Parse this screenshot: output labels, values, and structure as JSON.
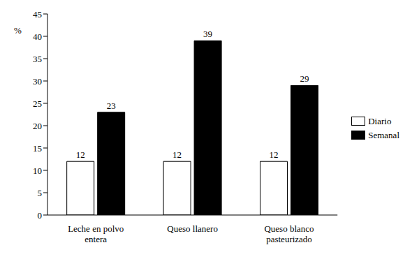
{
  "chart_data": {
    "type": "bar",
    "y_label": "%",
    "categories": [
      "Leche en polvo entera",
      "Queso llanero",
      "Queso blanco pasteurizado"
    ],
    "series": [
      {
        "name": "Diario",
        "color": "#ffffff",
        "values": [
          12,
          12,
          12
        ]
      },
      {
        "name": "Semanal",
        "color": "#000000",
        "values": [
          23,
          39,
          29
        ]
      }
    ],
    "ylim": [
      0,
      45
    ],
    "yticks": [
      0,
      5,
      10,
      15,
      20,
      25,
      30,
      35,
      40,
      45
    ],
    "grid": false,
    "legend": "right",
    "data_labels": true
  }
}
